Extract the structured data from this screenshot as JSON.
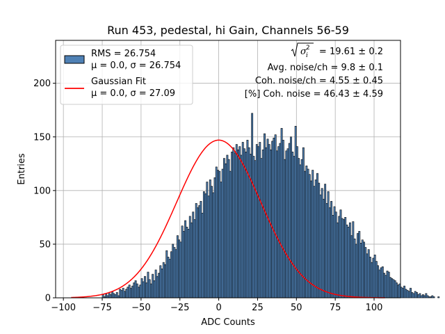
{
  "chart_data": {
    "type": "bar",
    "title": "Run 453, pedestal, hi Gain, Channels 56-59",
    "xlabel": "ADC Counts",
    "ylabel": "Entries",
    "xlim": [
      -105,
      117
    ],
    "ylim": [
      0,
      240
    ],
    "xticks": [
      -100,
      -75,
      -50,
      -25,
      0,
      25,
      50,
      75,
      100
    ],
    "yticks": [
      0,
      50,
      100,
      150,
      200
    ],
    "grid": true,
    "legend_position": "top-left",
    "bar_color": "#4f81b5",
    "fit_color": "#ff0000",
    "histogram": {
      "name": "RMS = 26.754",
      "label_line2": "μ = 0.0, σ = 26.754",
      "bins_start": -75,
      "bin_width": 1,
      "values": [
        3,
        1,
        4,
        2,
        5,
        3,
        6,
        4,
        3,
        5,
        2,
        8,
        7,
        9,
        6,
        8,
        10,
        12,
        9,
        11,
        14,
        16,
        13,
        10,
        12,
        18,
        15,
        20,
        14,
        24,
        17,
        13,
        22,
        16,
        26,
        20,
        23,
        30,
        27,
        33,
        31,
        44,
        38,
        36,
        43,
        50,
        47,
        45,
        58,
        54,
        52,
        67,
        62,
        72,
        66,
        64,
        76,
        70,
        80,
        73,
        88,
        84,
        86,
        90,
        79,
        99,
        97,
        108,
        95,
        110,
        104,
        98,
        112,
        122,
        119,
        118,
        108,
        120,
        130,
        125,
        133,
        129,
        118,
        136,
        140,
        135,
        143,
        138,
        141,
        133,
        145,
        139,
        136,
        147,
        140,
        134,
        172,
        132,
        128,
        143,
        141,
        145,
        130,
        138,
        153,
        140,
        148,
        143,
        138,
        146,
        149,
        152,
        137,
        141,
        144,
        158,
        147,
        129,
        137,
        139,
        144,
        150,
        136,
        132,
        160,
        141,
        130,
        124,
        129,
        140,
        118,
        123,
        120,
        115,
        109,
        119,
        104,
        110,
        116,
        107,
        96,
        102,
        92,
        106,
        88,
        99,
        84,
        90,
        77,
        85,
        80,
        70,
        76,
        82,
        74,
        73,
        75,
        68,
        66,
        70,
        58,
        71,
        55,
        50,
        60,
        62,
        51,
        54,
        52,
        47,
        41,
        45,
        38,
        33,
        37,
        40,
        34,
        30,
        26,
        28,
        29,
        23,
        21,
        25,
        24,
        19,
        18,
        17,
        16,
        14,
        12,
        13,
        10,
        9,
        11,
        8,
        7,
        6,
        9,
        5,
        4,
        6,
        5,
        3,
        4,
        2,
        3,
        2,
        4,
        2,
        1,
        1,
        2,
        1,
        0,
        0,
        1,
        0,
        0,
        0
      ]
    },
    "gaussian_fit": {
      "name": "Gaussian Fit",
      "label_line2": "μ = 0.0, σ = 27.09",
      "mu": 0.0,
      "sigma": 27.09,
      "peak": 147,
      "x_range": [
        -95,
        107
      ]
    },
    "stats": {
      "line1": "= 19.61 ± 0.2",
      "line2": "Avg. noise/ch = 9.8 ± 0.1",
      "line3": "Coh. noise/ch = 4.55 ± 0.45",
      "line4": "[%] Coh. noise = 46.43 ± 4.59"
    }
  }
}
